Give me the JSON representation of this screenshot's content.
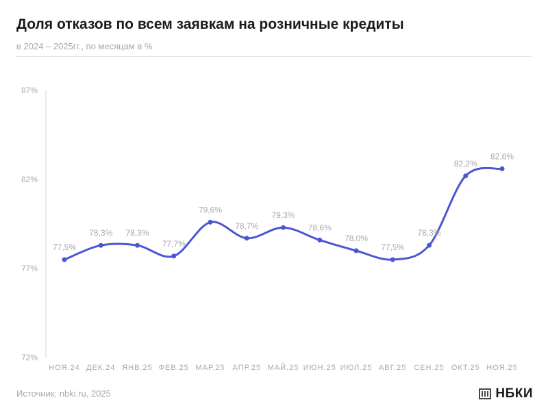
{
  "header": {
    "title": "Доля отказов по всем заявкам на розничные кредиты",
    "subtitle": "в 2024 – 2025гг., по месяцам в %"
  },
  "footer": {
    "source": "Источник: nbki.ru, 2025",
    "logo_text": "НБКИ"
  },
  "colors": {
    "line": "#4a57d3",
    "axis": "#dcdcdc",
    "tick_text": "#a8a8a8",
    "label_text": "#a8a8a8"
  },
  "chart_data": {
    "type": "line",
    "title": "Доля отказов по всем заявкам на розничные кредиты",
    "subtitle": "в 2024 – 2025гг., по месяцам в %",
    "categories": [
      "НОЯ.24",
      "ДЕК.24",
      "ЯНВ.25",
      "ФЕВ.25",
      "МАР.25",
      "АПР.25",
      "МАЙ.25",
      "ИЮН.25",
      "ИЮЛ.25",
      "АВГ.25",
      "СЕН.25",
      "ОКТ.25",
      "НОЯ.25"
    ],
    "series": [
      {
        "values": [
          77.5,
          78.3,
          78.3,
          77.7,
          79.6,
          78.7,
          79.3,
          78.6,
          78.0,
          77.5,
          78.3,
          82.2,
          82.6
        ],
        "labels": [
          "77,5%",
          "78,3%",
          "78,3%",
          "77,7%",
          "79,6%",
          "78,7%",
          "79,3%",
          "78,6%",
          "78,0%",
          "77,5%",
          "78,3%",
          "82,2%",
          "82,6%"
        ]
      }
    ],
    "ylim": [
      72,
      87
    ],
    "yticks": [
      72,
      77,
      82,
      87
    ],
    "ytick_labels": [
      "72%",
      "77%",
      "82%",
      "87%"
    ],
    "xlabel": "",
    "ylabel": "",
    "grid": false,
    "legend": "none"
  }
}
